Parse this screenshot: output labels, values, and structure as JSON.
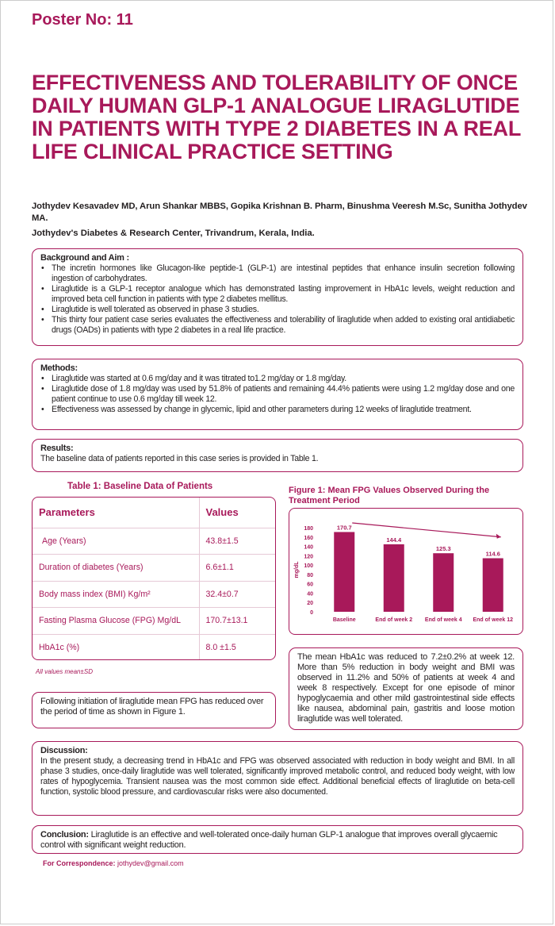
{
  "poster_no": "Poster No: 11",
  "title": "EFFECTIVENESS AND TOLERABILITY OF ONCE DAILY HUMAN GLP-1 ANALOGUE LIRAGLUTIDE IN PATIENTS WITH TYPE 2 DIABETES IN A REAL LIFE CLINICAL PRACTICE SETTING",
  "authors": "Jothydev Kesavadev MD, Arun Shankar MBBS, Gopika Krishnan B. Pharm, Binushma Veeresh M.Sc, Sunitha Jothydev MA.",
  "affiliation": "Jothydev's Diabetes & Research Center, Trivandrum, Kerala, India.",
  "accent_color": "#a8195a",
  "background": {
    "heading": "Background and Aim :",
    "items": [
      "The incretin hormones like Glucagon-like peptide-1 (GLP-1) are intestinal peptides that enhance insulin secretion following ingestion of carbohydrates.",
      "Liraglutide is a GLP-1 receptor analogue which has demonstrated lasting improvement in HbA1c levels, weight reduction and improved beta cell function in patients with type 2 diabetes mellitus.",
      "Liraglutide is well tolerated as observed in phase 3 studies.",
      "This thirty four patient case series evaluates the effectiveness and tolerability of liraglutide when added to existing oral antidiabetic drugs (OADs) in patients with type 2 diabetes in a real life practice."
    ]
  },
  "methods": {
    "heading": "Methods:",
    "items": [
      "Liraglutide was started at 0.6 mg/day and it was titrated to1.2 mg/day or 1.8 mg/day.",
      "Liraglutide dose of 1.8 mg/day was used by 51.8% of patients and remaining 44.4% patients were using 1.2 mg/day dose and one patient continue to use  0.6 mg/day till week 12.",
      "Effectiveness was assessed by change in glycemic, lipid and other parameters during 12 weeks of liraglutide treatment."
    ]
  },
  "results": {
    "heading": "Results:",
    "text": "The baseline data of patients reported in this case series is provided in Table 1."
  },
  "table": {
    "caption": "Table 1: Baseline Data of Patients",
    "headers": [
      "Parameters",
      "Values"
    ],
    "rows": [
      [
        "Age (Years)",
        "43.8±1.5"
      ],
      [
        "Duration of diabetes (Years)",
        "6.6±1.1"
      ],
      [
        "Body mass index (BMI) Kg/m²",
        "32.4±0.7"
      ],
      [
        "Fasting Plasma Glucose (FPG) Mg/dL",
        "170.7±13.1"
      ],
      [
        "HbA1c (%)",
        "8.0 ±1.5"
      ]
    ],
    "note": "All values mean±SD"
  },
  "fpg_text": "Following initiation of liraglutide mean FPG has  reduced over the period of time as shown in Figure 1.",
  "chart_data": {
    "type": "bar",
    "title": "Figure 1: Mean FPG Values Observed During the Treatment Period",
    "categories": [
      "Baseline",
      "End of week 2",
      "End of week 4",
      "End of week 12"
    ],
    "values": [
      170.7,
      144.4,
      125.3,
      114.6
    ],
    "ylabel": "mg/dL",
    "xlabel": "",
    "ylim": [
      0,
      180
    ],
    "yticks": [
      0,
      20,
      40,
      60,
      80,
      100,
      120,
      140,
      160,
      180
    ],
    "bar_color": "#a8195a",
    "grid": false,
    "annotation": "downward trend arrow"
  },
  "hba1c_text": "The mean HbA1c was reduced to 7.2±0.2% at week 12. More than 5% reduction in body weight and BMI was observed in 11.2% and 50% of patients at week 4 and week 8 respectively. Except for one episode of minor hypoglycaemia and other mild gastrointestinal side effects like nausea, abdominal pain, gastritis and loose motion liraglutide was well tolerated.",
  "discussion": {
    "heading": "Discussion:",
    "text": "In the present study, a decreasing trend in HbA1c and FPG was observed associated with reduction in body weight and BMI. In all phase 3 studies, once-daily liraglutide was well tolerated, significantly improved metabolic control, and reduced body weight, with low rates of hypoglycemia. Transient nausea was the most common side effect. Additional beneficial effects of liraglutide on beta-cell function, systolic blood pressure, and cardiovascular risks were also documented."
  },
  "conclusion": {
    "heading": "Conclusion:",
    "text": " Liraglutide is an effective and well-tolerated once-daily human GLP-1 analogue that improves overall glycaemic control with significant weight reduction."
  },
  "correspondence": {
    "label": "For Correspondence:",
    "email": " jothydev@gmail.com"
  }
}
